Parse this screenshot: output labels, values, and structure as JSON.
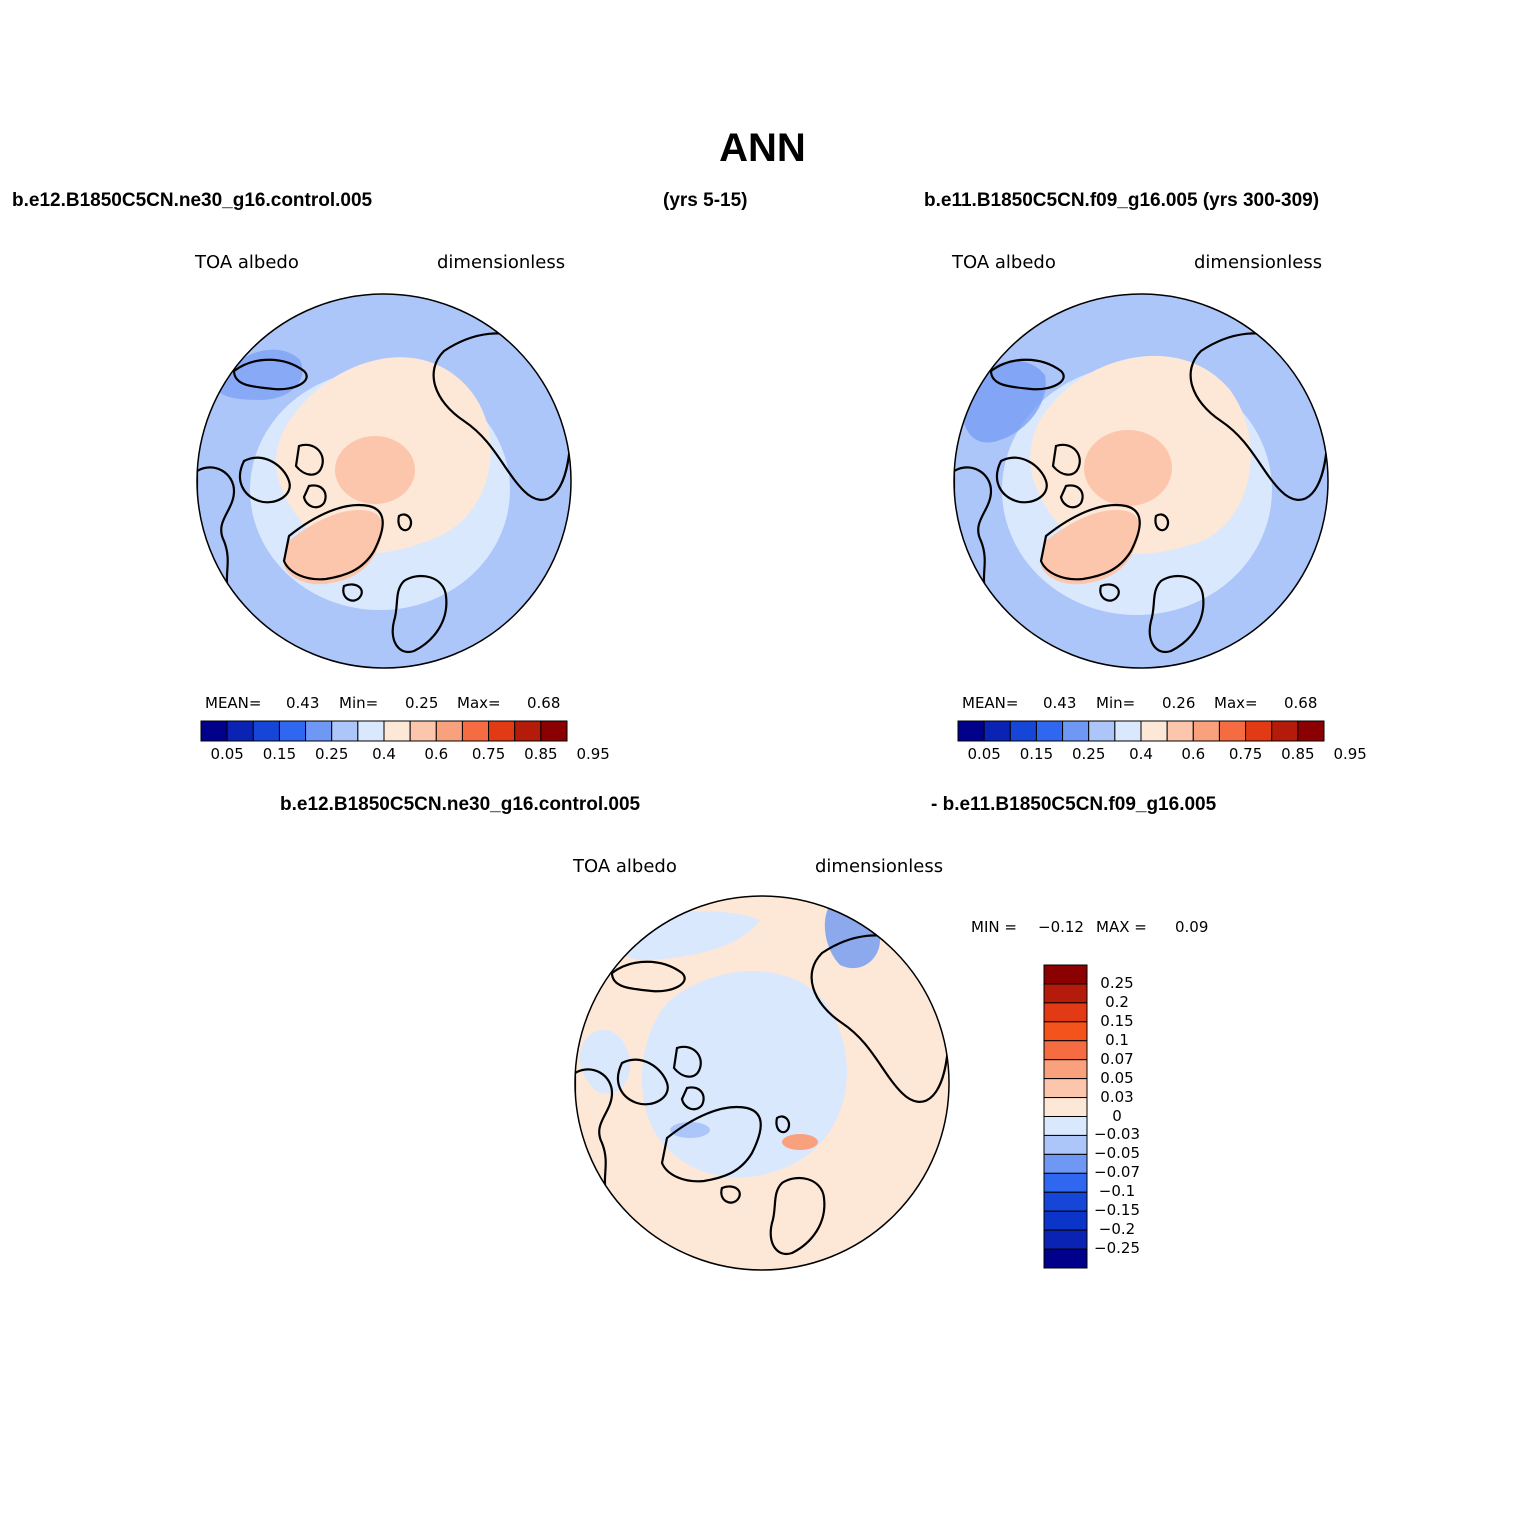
{
  "title": "ANN",
  "top_left_case": "b.e12.B1850C5CN.ne30_g16.control.005",
  "top_left_years": "(yrs 5-15)",
  "top_right_case": "b.e11.B1850C5CN.f09_g16.005 (yrs 300-309)",
  "diff_left_case": "b.e12.B1850C5CN.ne30_g16.control.005",
  "diff_right_case": "- b.e11.B1850C5CN.f09_g16.005",
  "colors": {
    "level_scale": [
      "#00008b",
      "#0a23b5",
      "#1546d8",
      "#2f67f0",
      "#6f98f4",
      "#adc6f9",
      "#d9e8fd",
      "#fde8d7",
      "#fcc6ac",
      "#f9a07c",
      "#f56b42",
      "#e33a16",
      "#b51b0b",
      "#8b0000"
    ],
    "diff_scale": [
      "#00008b",
      "#0a23b5",
      "#1546d8",
      "#2f67f0",
      "#6f98f4",
      "#adc6f9",
      "#d9e8fd",
      "#fde8d7",
      "#fcc6ac",
      "#f9a07c",
      "#f56b42",
      "#e33a16",
      "#b51b0b",
      "#8b0000"
    ],
    "land_outline": "#000000"
  },
  "panels": [
    {
      "id": "model-a",
      "variable": "TOA albedo",
      "units": "dimensionless",
      "mean_label": "MEAN=",
      "mean": "0.43",
      "min_label": "Min=",
      "min": "0.25",
      "max_label": "Max=",
      "max": "0.68",
      "ticks": [
        "0.05",
        "0.15",
        "0.25",
        "0.4",
        "0.6",
        "0.75",
        "0.85",
        "0.95"
      ]
    },
    {
      "id": "model-b",
      "variable": "TOA albedo",
      "units": "dimensionless",
      "mean_label": "MEAN=",
      "mean": "0.43",
      "min_label": "Min=",
      "min": "0.26",
      "max_label": "Max=",
      "max": "0.68",
      "ticks": [
        "0.05",
        "0.15",
        "0.25",
        "0.4",
        "0.6",
        "0.75",
        "0.85",
        "0.95"
      ]
    }
  ],
  "diff_panel": {
    "variable": "TOA albedo",
    "units": "dimensionless",
    "min_label": "MIN =",
    "min": "−0.12",
    "max_label": "MAX =",
    "max": "0.09",
    "ticks": [
      "0.25",
      "0.2",
      "0.15",
      "0.1",
      "0.07",
      "0.05",
      "0.03",
      "0",
      "−0.03",
      "−0.05",
      "−0.07",
      "−0.1",
      "−0.15",
      "−0.2",
      "−0.25"
    ]
  }
}
